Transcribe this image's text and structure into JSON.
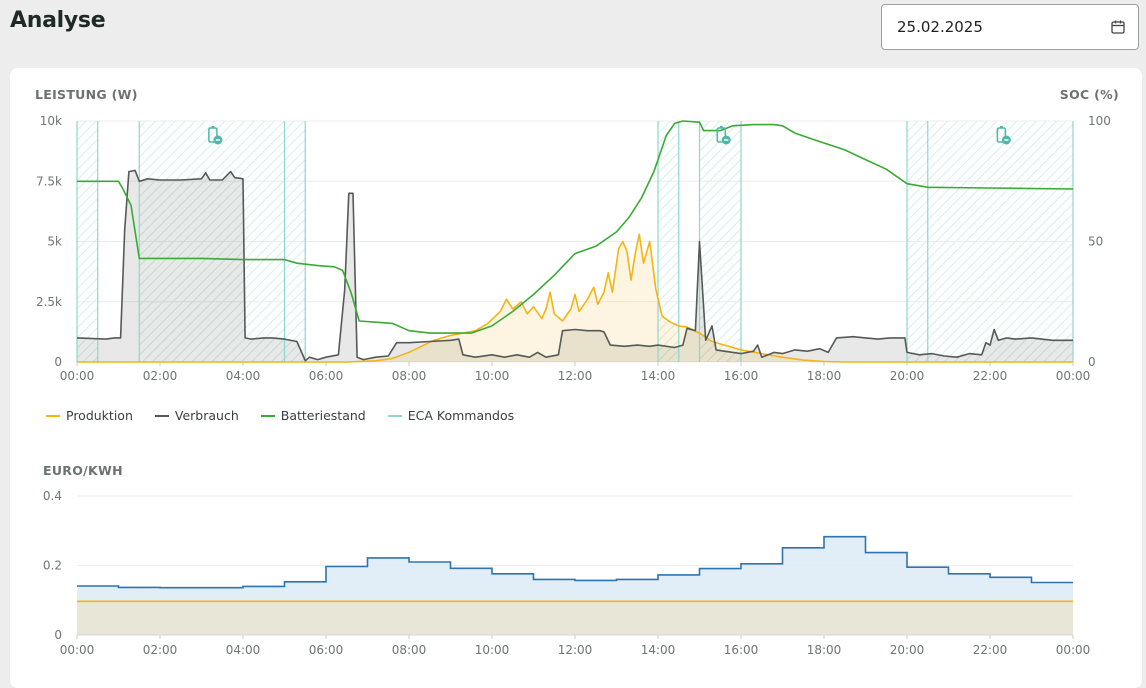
{
  "page": {
    "title": "Analyse",
    "date": "25.02.2025"
  },
  "colors": {
    "produktion": "#f2b517",
    "verbrauch": "#555a58",
    "batterie": "#3aaa35",
    "eca": "#8ed6ce",
    "price": "#2f73b0",
    "flat_price": "#f2b517"
  },
  "chart_data": [
    {
      "type": "line",
      "title": "",
      "ylabel_left": "LEISTUNG (W)",
      "ylabel_right": "SOC (%)",
      "ylim_left": [
        0,
        10000
      ],
      "ylim_right": [
        0,
        100
      ],
      "y_ticks_left": [
        "0",
        "2.5k",
        "5k",
        "7.5k",
        "10k"
      ],
      "y_ticks_right": [
        "0",
        "50",
        "100"
      ],
      "x_ticks": [
        "00:00",
        "02:00",
        "04:00",
        "06:00",
        "08:00",
        "10:00",
        "12:00",
        "14:00",
        "16:00",
        "18:00",
        "20:00",
        "22:00",
        "00:00"
      ],
      "legend": [
        "Produktion",
        "Verbrauch",
        "Batteriestand",
        "ECA Kommandos"
      ],
      "legend_position": "bottom-left",
      "eca_commands": [
        {
          "start": 0.0,
          "end": 0.5,
          "icon": "none"
        },
        {
          "start": 1.5,
          "end": 5.0,
          "icon": "battery-discharge-icon"
        },
        {
          "start": 5.0,
          "end": 5.5,
          "icon": "none"
        },
        {
          "start": 14.0,
          "end": 14.5,
          "icon": "none"
        },
        {
          "start": 15.0,
          "end": 16.0,
          "icon": "battery-discharge-icon"
        },
        {
          "start": 20.0,
          "end": 20.5,
          "icon": "none"
        },
        {
          "start": 20.5,
          "end": 24.0,
          "icon": "battery-discharge-icon"
        }
      ],
      "eca_markers": [
        0.0,
        0.5,
        1.5,
        5.0,
        5.5,
        14.0,
        14.5,
        15.0,
        16.0,
        20.0,
        20.5,
        24.0
      ],
      "series": [
        {
          "name": "Produktion",
          "points": [
            [
              0,
              0
            ],
            [
              6.5,
              0
            ],
            [
              7.2,
              50
            ],
            [
              7.6,
              150
            ],
            [
              8.0,
              400
            ],
            [
              8.3,
              650
            ],
            [
              8.6,
              900
            ],
            [
              9.0,
              1100
            ],
            [
              9.3,
              1200
            ],
            [
              9.6,
              1300
            ],
            [
              9.9,
              1600
            ],
            [
              10.2,
              2100
            ],
            [
              10.35,
              2600
            ],
            [
              10.5,
              2200
            ],
            [
              10.7,
              2500
            ],
            [
              10.85,
              2000
            ],
            [
              11.0,
              2300
            ],
            [
              11.2,
              1800
            ],
            [
              11.3,
              2200
            ],
            [
              11.4,
              2900
            ],
            [
              11.5,
              2000
            ],
            [
              11.7,
              1700
            ],
            [
              11.9,
              2200
            ],
            [
              12.0,
              2800
            ],
            [
              12.1,
              2100
            ],
            [
              12.3,
              2600
            ],
            [
              12.45,
              3100
            ],
            [
              12.55,
              2400
            ],
            [
              12.7,
              2900
            ],
            [
              12.8,
              3700
            ],
            [
              12.9,
              2900
            ],
            [
              13.05,
              4700
            ],
            [
              13.15,
              5000
            ],
            [
              13.25,
              4600
            ],
            [
              13.35,
              3400
            ],
            [
              13.45,
              4500
            ],
            [
              13.55,
              5300
            ],
            [
              13.65,
              4100
            ],
            [
              13.8,
              5000
            ],
            [
              13.95,
              3000
            ],
            [
              14.1,
              1900
            ],
            [
              14.3,
              1650
            ],
            [
              14.5,
              1500
            ],
            [
              14.7,
              1450
            ],
            [
              15.0,
              1200
            ],
            [
              15.3,
              850
            ],
            [
              15.6,
              700
            ],
            [
              16.0,
              500
            ],
            [
              16.5,
              350
            ],
            [
              17.0,
              200
            ],
            [
              17.5,
              80
            ],
            [
              18.0,
              20
            ],
            [
              18.5,
              0
            ],
            [
              24.0,
              0
            ]
          ]
        },
        {
          "name": "Verbrauch",
          "points": [
            [
              0,
              1000
            ],
            [
              0.7,
              950
            ],
            [
              0.9,
              1000
            ],
            [
              1.05,
              1000
            ],
            [
              1.15,
              5500
            ],
            [
              1.25,
              7900
            ],
            [
              1.4,
              7950
            ],
            [
              1.5,
              7500
            ],
            [
              1.7,
              7600
            ],
            [
              2.0,
              7550
            ],
            [
              2.5,
              7550
            ],
            [
              3.0,
              7600
            ],
            [
              3.1,
              7850
            ],
            [
              3.2,
              7550
            ],
            [
              3.5,
              7550
            ],
            [
              3.7,
              7900
            ],
            [
              3.8,
              7650
            ],
            [
              4.0,
              7600
            ],
            [
              4.05,
              1000
            ],
            [
              4.2,
              950
            ],
            [
              4.5,
              1000
            ],
            [
              4.7,
              1000
            ],
            [
              5.0,
              950
            ],
            [
              5.3,
              850
            ],
            [
              5.5,
              50
            ],
            [
              5.6,
              200
            ],
            [
              5.8,
              100
            ],
            [
              6.0,
              200
            ],
            [
              6.3,
              300
            ],
            [
              6.45,
              3000
            ],
            [
              6.55,
              7000
            ],
            [
              6.65,
              7000
            ],
            [
              6.75,
              200
            ],
            [
              6.9,
              100
            ],
            [
              7.2,
              200
            ],
            [
              7.5,
              250
            ],
            [
              7.7,
              800
            ],
            [
              8.0,
              800
            ],
            [
              8.5,
              850
            ],
            [
              9.0,
              900
            ],
            [
              9.2,
              950
            ],
            [
              9.3,
              300
            ],
            [
              9.6,
              200
            ],
            [
              10.0,
              300
            ],
            [
              10.3,
              200
            ],
            [
              10.6,
              300
            ],
            [
              10.9,
              200
            ],
            [
              11.1,
              400
            ],
            [
              11.3,
              200
            ],
            [
              11.6,
              300
            ],
            [
              11.7,
              1300
            ],
            [
              12.0,
              1350
            ],
            [
              12.3,
              1300
            ],
            [
              12.6,
              1300
            ],
            [
              12.7,
              1250
            ],
            [
              12.85,
              700
            ],
            [
              13.2,
              650
            ],
            [
              13.5,
              700
            ],
            [
              13.8,
              650
            ],
            [
              14.0,
              700
            ],
            [
              14.4,
              600
            ],
            [
              14.6,
              700
            ],
            [
              14.7,
              1400
            ],
            [
              14.9,
              1300
            ],
            [
              15.0,
              5000
            ],
            [
              15.15,
              900
            ],
            [
              15.3,
              1500
            ],
            [
              15.4,
              500
            ],
            [
              15.6,
              450
            ],
            [
              16.0,
              350
            ],
            [
              16.3,
              450
            ],
            [
              16.4,
              700
            ],
            [
              16.5,
              200
            ],
            [
              16.8,
              400
            ],
            [
              17.0,
              350
            ],
            [
              17.3,
              500
            ],
            [
              17.6,
              450
            ],
            [
              17.9,
              550
            ],
            [
              18.1,
              400
            ],
            [
              18.3,
              1000
            ],
            [
              18.7,
              1050
            ],
            [
              19.0,
              1000
            ],
            [
              19.3,
              950
            ],
            [
              19.6,
              1000
            ],
            [
              19.95,
              1000
            ],
            [
              20.0,
              400
            ],
            [
              20.3,
              300
            ],
            [
              20.6,
              350
            ],
            [
              20.9,
              250
            ],
            [
              21.2,
              200
            ],
            [
              21.5,
              350
            ],
            [
              21.8,
              300
            ],
            [
              21.9,
              800
            ],
            [
              22.0,
              700
            ],
            [
              22.1,
              1350
            ],
            [
              22.2,
              900
            ],
            [
              22.4,
              1000
            ],
            [
              22.6,
              950
            ],
            [
              23.0,
              1000
            ],
            [
              23.5,
              900
            ],
            [
              24.0,
              900
            ]
          ]
        },
        {
          "name": "Batteriestand",
          "points": [
            [
              0,
              75
            ],
            [
              1.0,
              75
            ],
            [
              1.1,
              72
            ],
            [
              1.3,
              65
            ],
            [
              1.5,
              43
            ],
            [
              2.0,
              43
            ],
            [
              3.0,
              43
            ],
            [
              4.0,
              42.5
            ],
            [
              5.0,
              42.5
            ],
            [
              5.3,
              41
            ],
            [
              5.8,
              40
            ],
            [
              6.2,
              39.5
            ],
            [
              6.4,
              38
            ],
            [
              6.6,
              29
            ],
            [
              6.8,
              17
            ],
            [
              7.2,
              16.5
            ],
            [
              7.6,
              16
            ],
            [
              8.0,
              13
            ],
            [
              8.5,
              12
            ],
            [
              9.5,
              12
            ],
            [
              10.0,
              15
            ],
            [
              10.5,
              21
            ],
            [
              11.0,
              28
            ],
            [
              11.5,
              36
            ],
            [
              12.0,
              45
            ],
            [
              12.5,
              48
            ],
            [
              13.0,
              54
            ],
            [
              13.3,
              60
            ],
            [
              13.6,
              68
            ],
            [
              13.9,
              79
            ],
            [
              14.2,
              94
            ],
            [
              14.4,
              99
            ],
            [
              14.6,
              100
            ],
            [
              15.0,
              99.5
            ],
            [
              15.1,
              96
            ],
            [
              15.5,
              96
            ],
            [
              15.8,
              98
            ],
            [
              16.3,
              98.5
            ],
            [
              16.8,
              98.5
            ],
            [
              17.0,
              98
            ],
            [
              17.3,
              95
            ],
            [
              17.8,
              92
            ],
            [
              18.5,
              88
            ],
            [
              19.0,
              84
            ],
            [
              19.5,
              80
            ],
            [
              20.0,
              74
            ],
            [
              20.5,
              72.5
            ],
            [
              22.0,
              72.2
            ],
            [
              24.0,
              71.8
            ]
          ]
        }
      ]
    },
    {
      "type": "line",
      "title": "",
      "ylabel": "EURO/KWH",
      "ylim": [
        0,
        0.4
      ],
      "y_ticks": [
        "0",
        "0.2",
        "0.4"
      ],
      "x_ticks": [
        "00:00",
        "02:00",
        "04:00",
        "06:00",
        "08:00",
        "10:00",
        "12:00",
        "14:00",
        "16:00",
        "18:00",
        "20:00",
        "22:00",
        "00:00"
      ],
      "series": [
        {
          "name": "",
          "step": true,
          "hours": [
            0,
            1,
            2,
            3,
            4,
            5,
            6,
            7,
            8,
            9,
            10,
            11,
            12,
            13,
            14,
            15,
            16,
            17,
            18,
            19,
            20,
            21,
            22,
            23
          ],
          "values": [
            0.141,
            0.137,
            0.136,
            0.136,
            0.14,
            0.153,
            0.197,
            0.222,
            0.21,
            0.192,
            0.176,
            0.16,
            0.157,
            0.16,
            0.173,
            0.191,
            0.205,
            0.251,
            0.283,
            0.237,
            0.195,
            0.176,
            0.166,
            0.151
          ]
        },
        {
          "name": "",
          "values_flat": 0.097
        }
      ]
    }
  ]
}
